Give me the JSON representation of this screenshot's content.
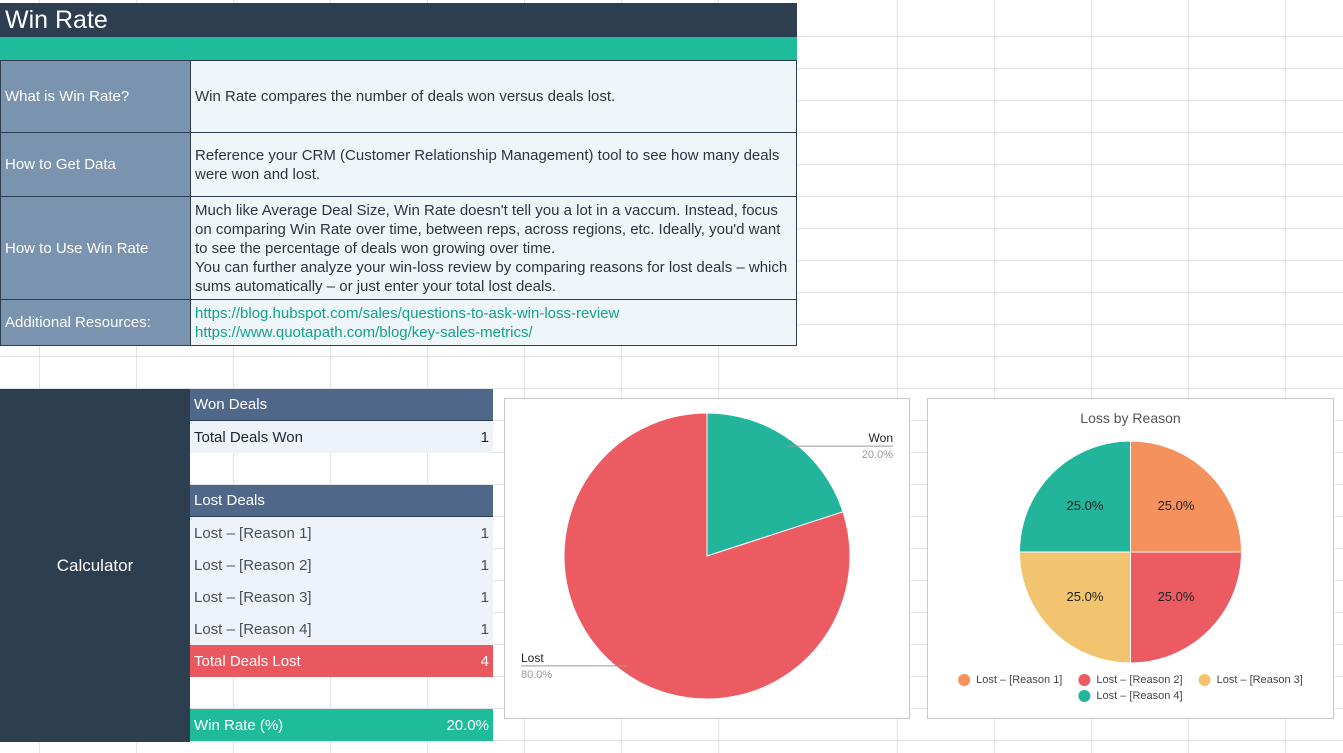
{
  "header": {
    "title": "Win Rate"
  },
  "info": {
    "rows": [
      {
        "label": "What is Win Rate?",
        "text": [
          "Win Rate compares the number of deals won versus deals lost."
        ]
      },
      {
        "label": "How to Get Data",
        "text": [
          "Reference your CRM (Customer Relationship Management) tool to see how many deals were won and lost."
        ]
      },
      {
        "label": "How to Use Win Rate",
        "text": [
          "Much like Average Deal Size, Win Rate doesn't tell you a lot in a vaccum. Instead, focus on comparing Win Rate over time, between reps, across regions, etc. Ideally, you'd want to see the percentage of deals won growing over time.",
          "You can further analyze your win-loss review by comparing reasons for lost deals – which sums automatically – or just enter your total lost deals."
        ]
      },
      {
        "label": "Additional Resources:",
        "links": [
          "https://blog.hubspot.com/sales/questions-to-ask-win-loss-review",
          "https://www.quotapath.com/blog/key-sales-metrics/"
        ]
      }
    ]
  },
  "calculator": {
    "label": "Calculator",
    "won": {
      "header": "Won Deals",
      "rows": [
        [
          "Total Deals Won",
          1
        ]
      ]
    },
    "lost": {
      "header": "Lost Deals",
      "rows": [
        [
          "Lost – [Reason 1]",
          1
        ],
        [
          "Lost – [Reason 2]",
          1
        ],
        [
          "Lost – [Reason 3]",
          1
        ],
        [
          "Lost – [Reason 4]",
          1
        ]
      ],
      "total": [
        "Total Deals Lost",
        4
      ]
    },
    "win_rate": [
      "Win Rate (%)",
      "20.0%"
    ]
  },
  "chart_data": [
    {
      "type": "pie",
      "categories": [
        "Won",
        "Lost"
      ],
      "values": [
        20,
        80
      ],
      "value_labels": [
        "20.0%",
        "80.0%"
      ],
      "colors": [
        "#22b59c",
        "#ec5b62"
      ],
      "labels": "outside"
    },
    {
      "type": "pie",
      "title": "Loss by Reason",
      "categories": [
        "Lost – [Reason 1]",
        "Lost – [Reason 2]",
        "Lost – [Reason 3]",
        "Lost – [Reason 4]"
      ],
      "values": [
        25,
        25,
        25,
        25
      ],
      "value_labels": [
        "25.0%",
        "25.0%",
        "25.0%",
        "25.0%"
      ],
      "colors": [
        "#f5915c",
        "#ec5b62",
        "#f3c46f",
        "#22b59c"
      ],
      "labels": "inside",
      "legend": "bottom"
    }
  ]
}
